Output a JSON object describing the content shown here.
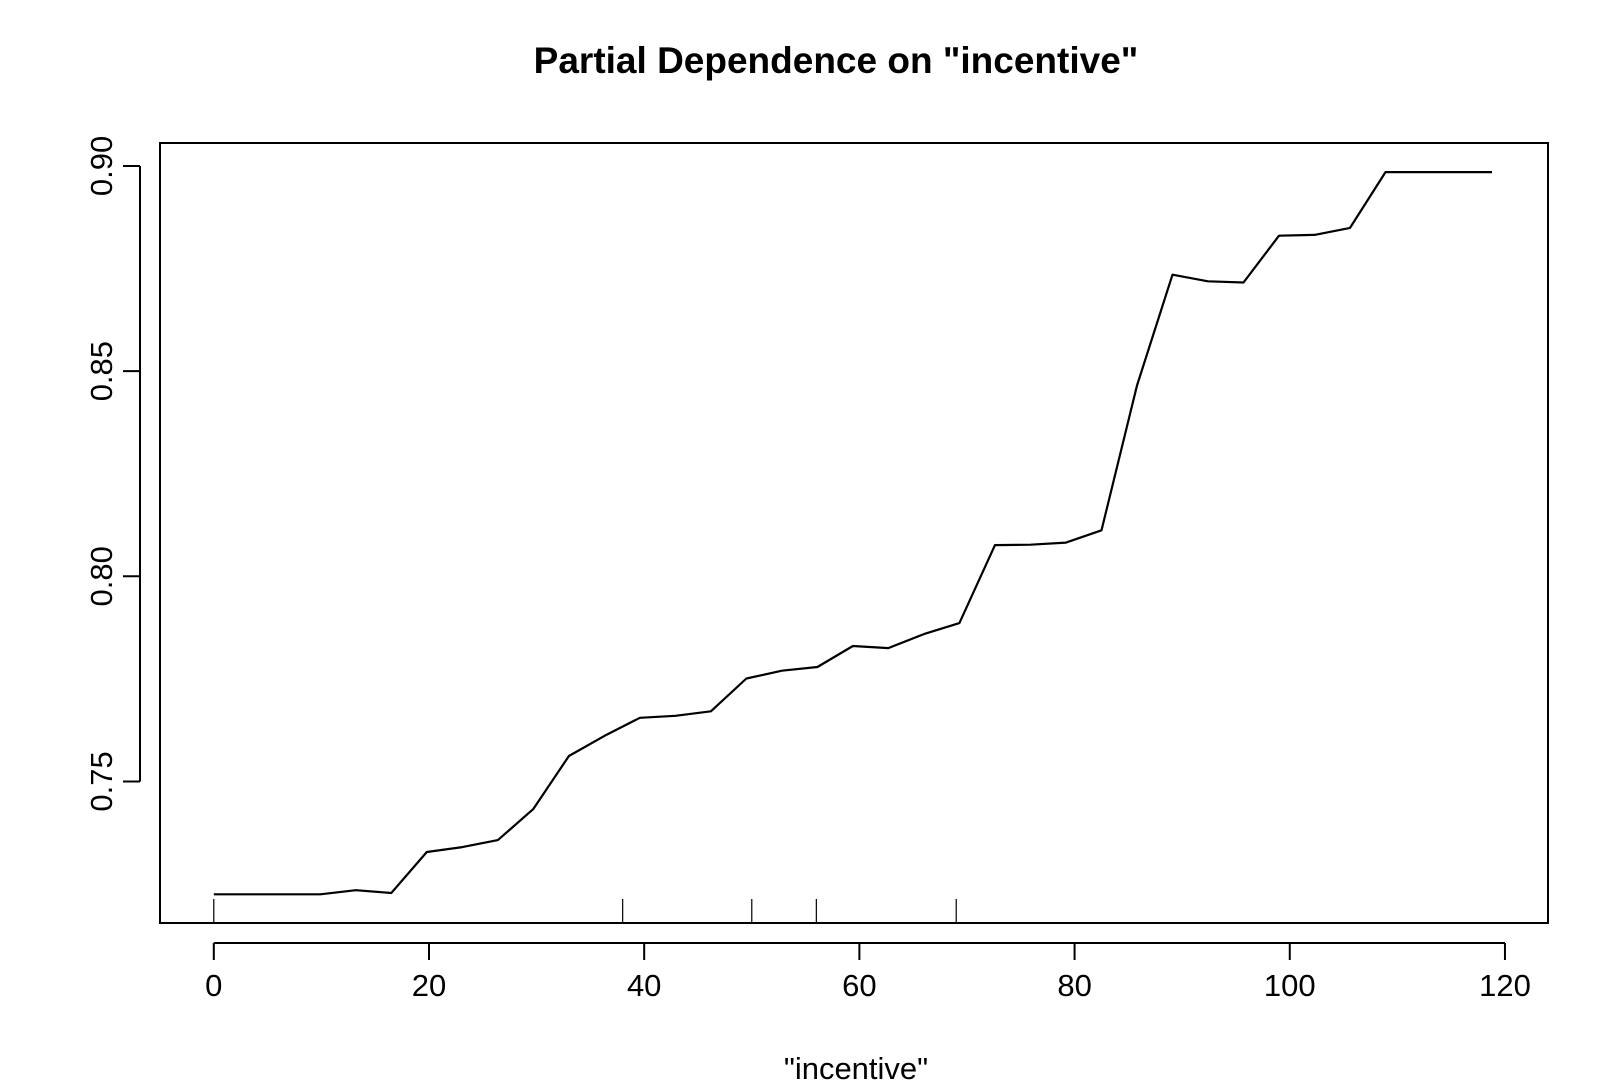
{
  "chart_data": {
    "type": "line",
    "title": "Partial Dependence on \"incentive\"",
    "xlabel": "\"incentive\"",
    "ylabel": "",
    "xlim": [
      -5,
      124
    ],
    "ylim": [
      0.7155,
      0.9056
    ],
    "x_ticks": [
      0,
      20,
      40,
      60,
      80,
      100,
      120
    ],
    "x_tick_labels": [
      "0",
      "20",
      "40",
      "60",
      "80",
      "100",
      "120"
    ],
    "y_ticks": [
      0.75,
      0.8,
      0.85,
      0.9
    ],
    "y_tick_labels": [
      "0.75",
      "0.80",
      "0.85",
      "0.90"
    ],
    "rug": [
      0,
      38,
      50,
      56,
      69
    ],
    "grid": false,
    "series": [
      {
        "x": [
          0,
          3.3,
          6.6,
          9.9,
          13.2,
          16.5,
          19.8,
          23.1,
          26.4,
          29.7,
          33.0,
          36.3,
          39.6,
          42.9,
          46.2,
          49.5,
          52.8,
          56.1,
          59.4,
          62.7,
          66.0,
          69.3,
          72.6,
          75.9,
          79.2,
          82.5,
          85.8,
          89.1,
          92.4,
          95.7,
          99.0,
          102.3,
          105.6,
          108.9,
          112.2,
          115.5,
          118.8
        ],
        "y": [
          0.7225,
          0.7225,
          0.7225,
          0.7225,
          0.7235,
          0.7228,
          0.7328,
          0.734,
          0.7357,
          0.7433,
          0.7562,
          0.7611,
          0.7655,
          0.766,
          0.7671,
          0.7751,
          0.777,
          0.7779,
          0.783,
          0.7825,
          0.7859,
          0.7886,
          0.8076,
          0.8077,
          0.8082,
          0.8112,
          0.8465,
          0.8735,
          0.8719,
          0.8716,
          0.883,
          0.8832,
          0.8849,
          0.8985,
          0.8985,
          0.8985,
          0.8985
        ]
      }
    ]
  }
}
